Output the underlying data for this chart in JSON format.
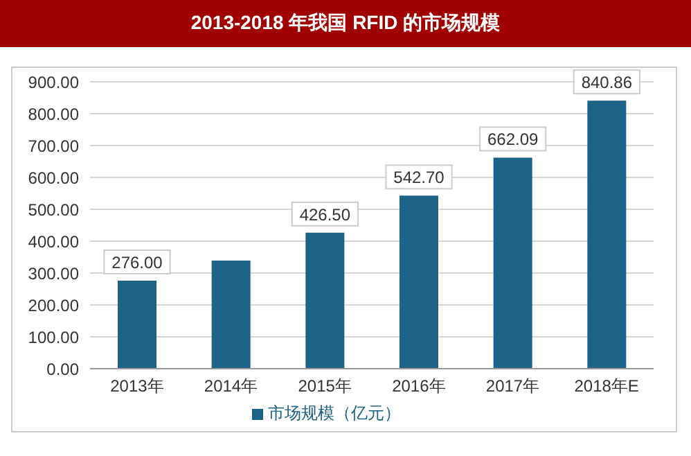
{
  "chart_data": {
    "type": "bar",
    "title": "2013-2018 年我国 RFID 的市场规模",
    "categories": [
      "2013年",
      "2014年",
      "2015年",
      "2016年",
      "2017年",
      "2018年E"
    ],
    "series": [
      {
        "name": "市场规模（亿元）",
        "color": "#1c6387",
        "values": [
          276,
          339,
          426.5,
          542.7,
          662.09,
          840.86
        ],
        "value_labels": [
          "276.00",
          null,
          "426.50",
          "542.70",
          "662.09",
          "840.86"
        ]
      }
    ],
    "ylim": [
      0,
      900
    ],
    "yticks": [
      {
        "value": 0,
        "label": "0.00"
      },
      {
        "value": 100,
        "label": "100.00"
      },
      {
        "value": 200,
        "label": "200.00"
      },
      {
        "value": 300,
        "label": "300.00"
      },
      {
        "value": 400,
        "label": "400.00"
      },
      {
        "value": 500,
        "label": "500.00"
      },
      {
        "value": 600,
        "label": "600.00"
      },
      {
        "value": 700,
        "label": "700.00"
      },
      {
        "value": 800,
        "label": "800.00"
      },
      {
        "value": 900,
        "label": "900.00"
      }
    ],
    "grid": "y",
    "legend": "bottom"
  }
}
